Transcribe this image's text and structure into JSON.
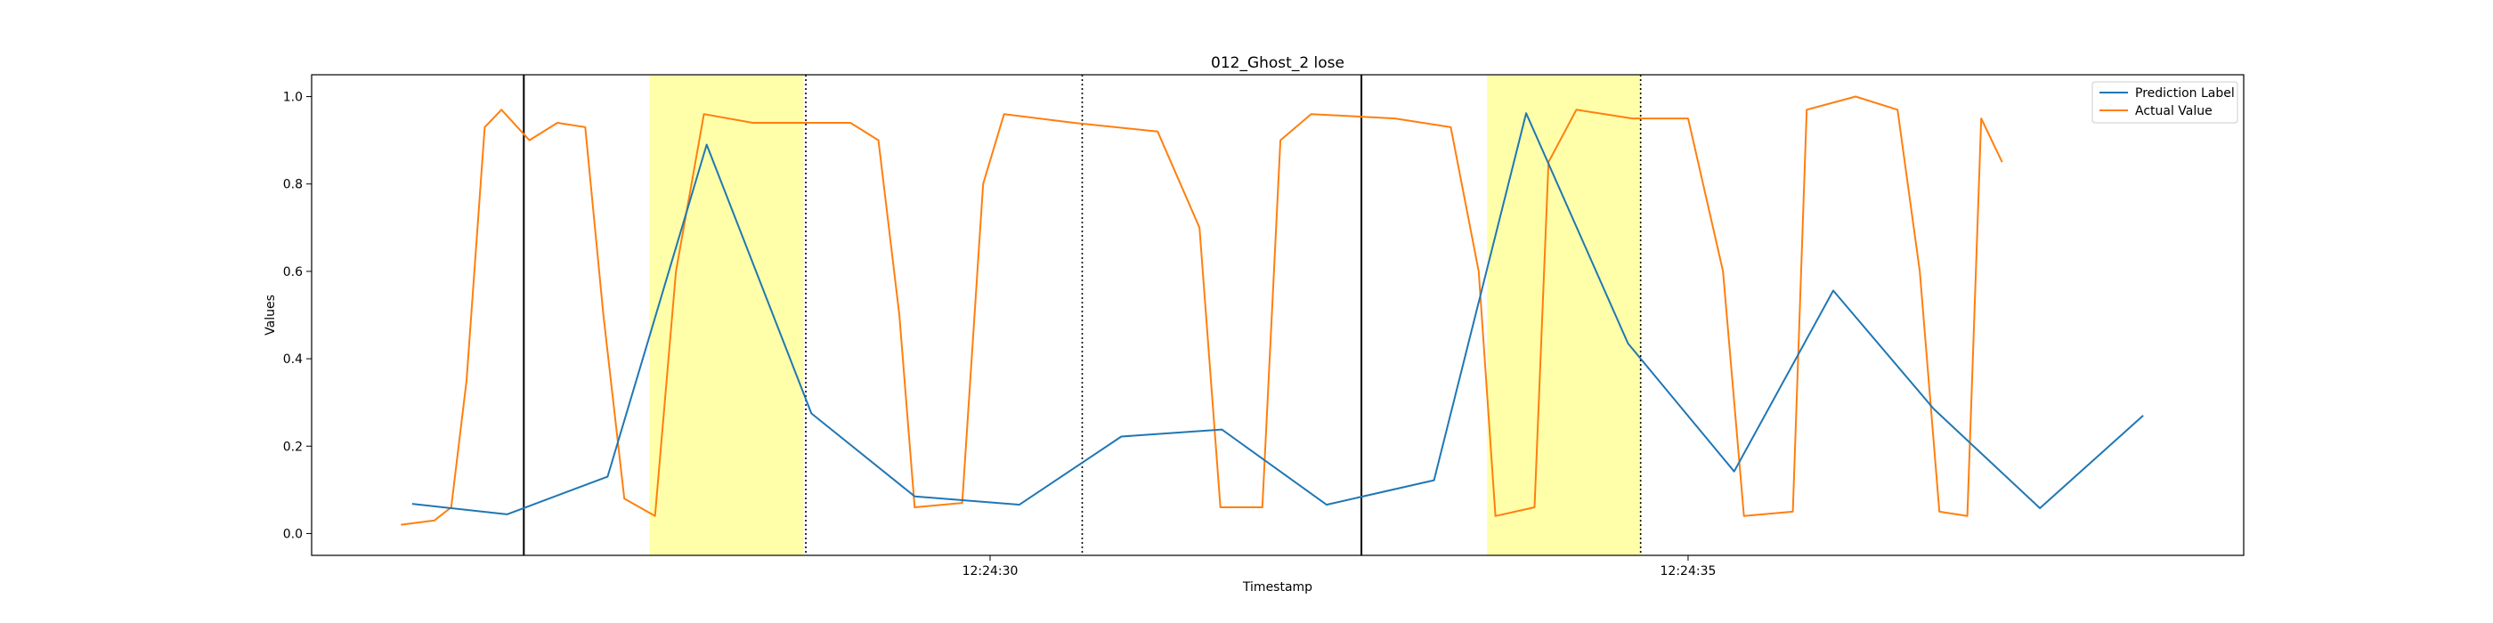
{
  "chart_data": {
    "type": "line",
    "title": "012_Ghost_2 lose",
    "xlabel": "Timestamp",
    "ylabel": "Values",
    "xlim": [
      "12:24:25.14",
      "12:24:38.98"
    ],
    "ylim": [
      -0.05,
      1.05
    ],
    "x_ticks": [
      {
        "value": "12:24:30",
        "label": "12:24:30"
      },
      {
        "value": "12:24:35",
        "label": "12:24:35"
      }
    ],
    "y_ticks": [
      {
        "value": 0.0,
        "label": "0.0"
      },
      {
        "value": 0.2,
        "label": "0.2"
      },
      {
        "value": 0.4,
        "label": "0.4"
      },
      {
        "value": 0.6,
        "label": "0.6"
      },
      {
        "value": 0.8,
        "label": "0.8"
      },
      {
        "value": 1.0,
        "label": "1.0"
      }
    ],
    "grid": false,
    "legend_position": "top-right",
    "series": [
      {
        "name": "Prediction Label",
        "color": "#1f77b4",
        "points": [
          [
            "12:24:25.86",
            0.068
          ],
          [
            "12:24:26.54",
            0.044
          ],
          [
            "12:24:27.26",
            0.13
          ],
          [
            "12:24:27.97",
            0.89
          ],
          [
            "12:24:28.72",
            0.275
          ],
          [
            "12:24:29.46",
            0.085
          ],
          [
            "12:24:30.21",
            0.066
          ],
          [
            "12:24:30.94",
            0.222
          ],
          [
            "12:24:31.66",
            0.238
          ],
          [
            "12:24:32.41",
            0.066
          ],
          [
            "12:24:33.18",
            0.122
          ],
          [
            "12:24:33.84",
            0.962
          ],
          [
            "12:24:34.57",
            0.435
          ],
          [
            "12:24:35.33",
            0.142
          ],
          [
            "12:24:36.04",
            0.556
          ],
          [
            "12:24:36.76",
            0.285
          ],
          [
            "12:24:37.52",
            0.058
          ],
          [
            "12:24:38.26",
            0.27
          ]
        ]
      },
      {
        "name": "Actual Value",
        "color": "#ff7f0e",
        "points": [
          [
            "12:24:25.78",
            0.02
          ],
          [
            "12:24:26.02",
            0.03
          ],
          [
            "12:24:26.14",
            0.06
          ],
          [
            "12:24:26.25",
            0.35
          ],
          [
            "12:24:26.38",
            0.93
          ],
          [
            "12:24:26.50",
            0.97
          ],
          [
            "12:24:26.70",
            0.9
          ],
          [
            "12:24:26.90",
            0.94
          ],
          [
            "12:24:27.10",
            0.93
          ],
          [
            "12:24:27.23",
            0.5
          ],
          [
            "12:24:27.38",
            0.08
          ],
          [
            "12:24:27.60",
            0.04
          ],
          [
            "12:24:27.75",
            0.6
          ],
          [
            "12:24:27.95",
            0.96
          ],
          [
            "12:24:28.30",
            0.94
          ],
          [
            "12:24:28.70",
            0.94
          ],
          [
            "12:24:29.00",
            0.94
          ],
          [
            "12:24:29.20",
            0.9
          ],
          [
            "12:24:29.35",
            0.5
          ],
          [
            "12:24:29.46",
            0.06
          ],
          [
            "12:24:29.80",
            0.07
          ],
          [
            "12:24:29.95",
            0.8
          ],
          [
            "12:24:30.10",
            0.96
          ],
          [
            "12:24:30.60",
            0.94
          ],
          [
            "12:24:31.20",
            0.92
          ],
          [
            "12:24:31.50",
            0.7
          ],
          [
            "12:24:31.65",
            0.06
          ],
          [
            "12:24:31.95",
            0.06
          ],
          [
            "12:24:32.08",
            0.9
          ],
          [
            "12:24:32.30",
            0.96
          ],
          [
            "12:24:32.90",
            0.95
          ],
          [
            "12:24:33.30",
            0.93
          ],
          [
            "12:24:33.50",
            0.6
          ],
          [
            "12:24:33.62",
            0.04
          ],
          [
            "12:24:33.90",
            0.06
          ],
          [
            "12:24:34.00",
            0.85
          ],
          [
            "12:24:34.20",
            0.97
          ],
          [
            "12:24:34.60",
            0.95
          ],
          [
            "12:24:35.00",
            0.95
          ],
          [
            "12:24:35.25",
            0.6
          ],
          [
            "12:24:35.40",
            0.04
          ],
          [
            "12:24:35.75",
            0.05
          ],
          [
            "12:24:35.85",
            0.97
          ],
          [
            "12:24:36.20",
            1.0
          ],
          [
            "12:24:36.50",
            0.97
          ],
          [
            "12:24:36.66",
            0.6
          ],
          [
            "12:24:36.80",
            0.05
          ],
          [
            "12:24:37.00",
            0.04
          ],
          [
            "12:24:37.10",
            0.95
          ],
          [
            "12:24:37.25",
            0.85
          ]
        ]
      }
    ],
    "vertical_lines": [
      {
        "x": "12:24:26.66",
        "style": "solid"
      },
      {
        "x": "12:24:28.68",
        "style": "dotted"
      },
      {
        "x": "12:24:30.66",
        "style": "dotted"
      },
      {
        "x": "12:24:32.66",
        "style": "solid"
      },
      {
        "x": "12:24:34.66",
        "style": "dotted"
      }
    ],
    "highlight_spans": [
      {
        "start": "12:24:27.56",
        "end": "12:24:28.66",
        "color": "#ffffaa"
      },
      {
        "start": "12:24:33.56",
        "end": "12:24:34.66",
        "color": "#ffffaa"
      }
    ]
  }
}
